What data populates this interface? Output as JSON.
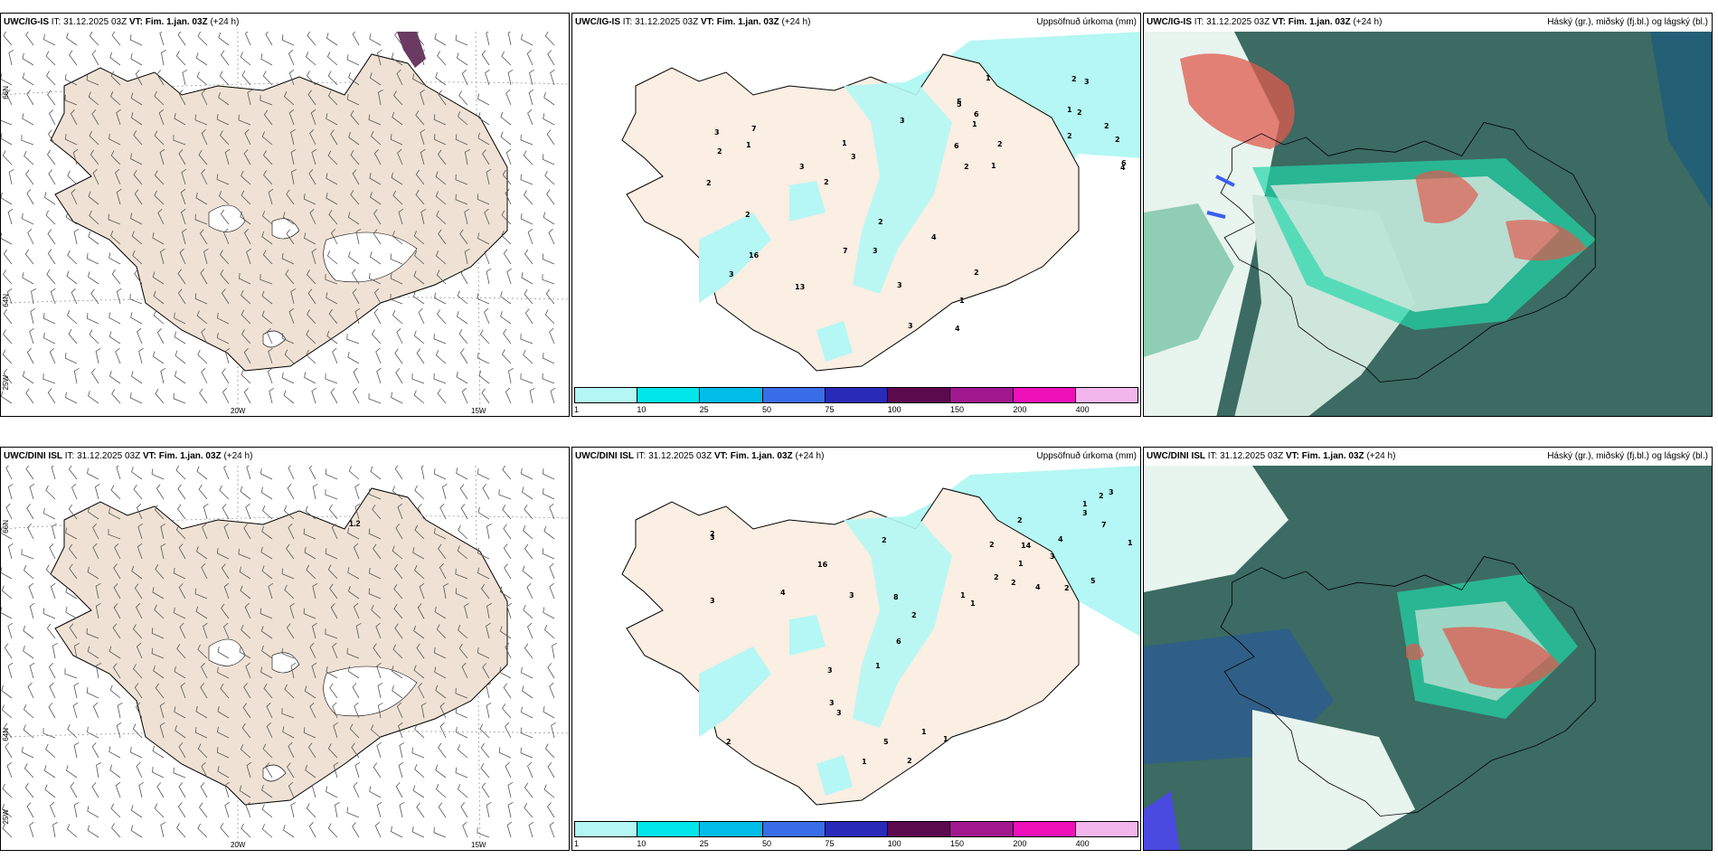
{
  "panels": [
    {
      "model": "UWC/IG-IS",
      "it": "IT: 31.12.2025 03Z",
      "vt": "VT: Fim. 1.jan. 03Z",
      "lead": "(+24 h)",
      "right": ""
    },
    {
      "model": "UWC/IG-IS",
      "it": "IT: 31.12.2025 03Z",
      "vt": "VT: Fim. 1.jan. 03Z",
      "lead": "(+24 h)",
      "right": "Uppsöfnuð úrkoma (mm)"
    },
    {
      "model": "UWC/IG-IS",
      "it": "IT: 31.12.2025 03Z",
      "vt": "VT: Fim. 1.jan. 03Z",
      "lead": "(+24 h)",
      "right": "Háský (gr.), miðský (fj.bl.) og lágský (bl.)"
    },
    {
      "model": "UWC/DINI ISL",
      "it": "IT: 31.12.2025 03Z",
      "vt": "VT: Fim. 1.jan. 03Z",
      "lead": "(+24 h)",
      "right": ""
    },
    {
      "model": "UWC/DINI ISL",
      "it": "IT: 31.12.2025 03Z",
      "vt": "VT: Fim. 1.jan. 03Z",
      "lead": "(+24 h)",
      "right": "Uppsöfnuð úrkoma (mm)"
    },
    {
      "model": "UWC/DINI ISL",
      "it": "IT: 31.12.2025 03Z",
      "vt": "VT: Fim. 1.jan. 03Z",
      "lead": "(+24 h)",
      "right": "Háský (gr.), miðský (fj.bl.) og lágský (bl.)"
    }
  ],
  "axis_labels": {
    "lat66": "66N",
    "lat64": "64N",
    "lon25": "25W",
    "lon20": "20W",
    "lon15": "15W"
  },
  "colorbar": {
    "labels": [
      "1",
      "10",
      "25",
      "50",
      "75",
      "100",
      "150",
      "200",
      "400"
    ],
    "colors": [
      "#b4f7f4",
      "#00e6ea",
      "#00bce8",
      "#3a6ee8",
      "#2a2ab8",
      "#5c0a4e",
      "#a0188e",
      "#ee10b8",
      "#f2b6ec"
    ]
  },
  "precip_values": {
    "top": [
      "1",
      "2",
      "2",
      "2",
      "2",
      "2",
      "1",
      "2",
      "3",
      "3",
      "3",
      "2",
      "5",
      "6",
      "7",
      "16",
      "13",
      "2",
      "4",
      "6",
      "4",
      "2",
      "3",
      "5",
      "7",
      "6",
      "3",
      "2",
      "2",
      "1",
      "1",
      "3",
      "1",
      "4",
      "2",
      "3",
      "1",
      "1",
      "3",
      "2",
      "3"
    ],
    "bottom": [
      "1",
      "2",
      "2",
      "2",
      "3",
      "3",
      "2",
      "3",
      "3",
      "2",
      "2",
      "3",
      "5",
      "5",
      "8",
      "1",
      "3",
      "2",
      "14",
      "16",
      "2",
      "1",
      "7",
      "4",
      "3",
      "1",
      "6",
      "4",
      "2",
      "2",
      "1",
      "3",
      "1",
      "1",
      "4",
      "3",
      "1",
      "1",
      "2"
    ]
  },
  "marker_value": "1.2",
  "colors": {
    "land": "#efe2d4",
    "coast": "#000000",
    "panel_border": "#000000",
    "cloud_dark": "#3b6b62",
    "cloud_mid": "#5a9c86",
    "cloud_bright": "#22d6a8",
    "cloud_high": "#e05a4e"
  }
}
